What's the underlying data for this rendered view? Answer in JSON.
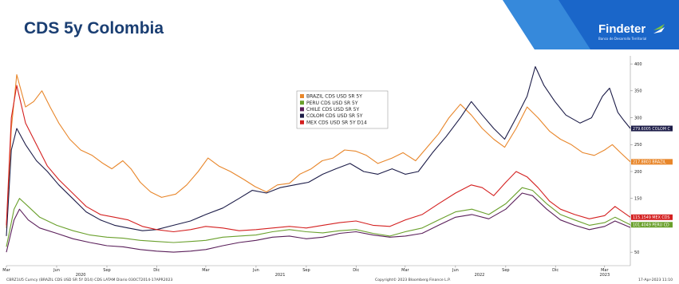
{
  "slide": {
    "title": "CDS 5y Colombia",
    "logo": {
      "name": "Findeter",
      "tagline": "Banco de Desarrollo Territorial",
      "colors": {
        "banner": "#1a66c9",
        "banner_light": "#4aa0e8",
        "mark_green": "#7cc242",
        "title": "#1a3e72"
      }
    }
  },
  "chart_data": {
    "type": "line",
    "xlim": [
      "2020-03-01",
      "2023-04-17"
    ],
    "ylim": [
      25,
      415
    ],
    "y_ticks": [
      50,
      100,
      150,
      200,
      250,
      300,
      350,
      400
    ],
    "grid": false,
    "legend_position": "top-center",
    "x_month_ticks": [
      {
        "date": "2020-03-01",
        "label": "Mar"
      },
      {
        "date": "2020-06-01",
        "label": "Jun"
      },
      {
        "date": "2020-09-01",
        "label": "Sep"
      },
      {
        "date": "2020-12-01",
        "label": "Dic"
      },
      {
        "date": "2021-03-01",
        "label": "Mar"
      },
      {
        "date": "2021-06-01",
        "label": "Jun"
      },
      {
        "date": "2021-09-01",
        "label": "Sep"
      },
      {
        "date": "2021-12-01",
        "label": "Dic"
      },
      {
        "date": "2022-03-01",
        "label": "Mar"
      },
      {
        "date": "2022-06-01",
        "label": "Jun"
      },
      {
        "date": "2022-09-01",
        "label": "Sep"
      },
      {
        "date": "2022-12-01",
        "label": "Dic"
      },
      {
        "date": "2023-03-01",
        "label": "Mar"
      }
    ],
    "x_year_labels": [
      {
        "date": "2020-07-15",
        "label": "2020"
      },
      {
        "date": "2021-07-15",
        "label": "2021"
      },
      {
        "date": "2022-07-15",
        "label": "2022"
      },
      {
        "date": "2023-03-01",
        "label": "2023"
      }
    ],
    "series": [
      {
        "name": "BRAZIL CDS USD SR 5Y",
        "color": "#e8862a",
        "last_label": "217.8803 BRAZIL",
        "points": [
          [
            "2020-03-01",
            95
          ],
          [
            "2020-03-10",
            280
          ],
          [
            "2020-03-20",
            380
          ],
          [
            "2020-04-05",
            320
          ],
          [
            "2020-04-20",
            330
          ],
          [
            "2020-05-05",
            350
          ],
          [
            "2020-05-20",
            320
          ],
          [
            "2020-06-05",
            290
          ],
          [
            "2020-06-25",
            260
          ],
          [
            "2020-07-15",
            240
          ],
          [
            "2020-08-05",
            230
          ],
          [
            "2020-08-25",
            215
          ],
          [
            "2020-09-10",
            205
          ],
          [
            "2020-09-30",
            220
          ],
          [
            "2020-10-15",
            205
          ],
          [
            "2020-11-01",
            180
          ],
          [
            "2020-11-20",
            162
          ],
          [
            "2020-12-10",
            152
          ],
          [
            "2021-01-05",
            158
          ],
          [
            "2021-01-25",
            175
          ],
          [
            "2021-02-15",
            200
          ],
          [
            "2021-03-05",
            225
          ],
          [
            "2021-03-25",
            210
          ],
          [
            "2021-04-15",
            200
          ],
          [
            "2021-05-10",
            185
          ],
          [
            "2021-05-30",
            172
          ],
          [
            "2021-06-20",
            162
          ],
          [
            "2021-07-10",
            175
          ],
          [
            "2021-08-01",
            178
          ],
          [
            "2021-08-20",
            195
          ],
          [
            "2021-09-10",
            205
          ],
          [
            "2021-09-30",
            220
          ],
          [
            "2021-10-20",
            225
          ],
          [
            "2021-11-10",
            240
          ],
          [
            "2021-11-30",
            238
          ],
          [
            "2021-12-20",
            230
          ],
          [
            "2022-01-10",
            215
          ],
          [
            "2022-02-05",
            225
          ],
          [
            "2022-02-25",
            235
          ],
          [
            "2022-03-20",
            220
          ],
          [
            "2022-04-10",
            245
          ],
          [
            "2022-05-01",
            270
          ],
          [
            "2022-05-20",
            300
          ],
          [
            "2022-06-10",
            325
          ],
          [
            "2022-06-30",
            305
          ],
          [
            "2022-07-20",
            280
          ],
          [
            "2022-08-10",
            260
          ],
          [
            "2022-08-30",
            245
          ],
          [
            "2022-09-20",
            280
          ],
          [
            "2022-10-10",
            320
          ],
          [
            "2022-10-30",
            300
          ],
          [
            "2022-11-20",
            275
          ],
          [
            "2022-12-10",
            260
          ],
          [
            "2022-12-30",
            250
          ],
          [
            "2023-01-20",
            235
          ],
          [
            "2023-02-10",
            230
          ],
          [
            "2023-03-01",
            240
          ],
          [
            "2023-03-15",
            250
          ],
          [
            "2023-03-30",
            235
          ],
          [
            "2023-04-17",
            218
          ]
        ]
      },
      {
        "name": "PERU CDS USD SR 5Y",
        "color": "#6aa02c",
        "last_label": "101.4049 PERU CD",
        "points": [
          [
            "2020-03-01",
            60
          ],
          [
            "2020-03-15",
            130
          ],
          [
            "2020-03-25",
            150
          ],
          [
            "2020-04-10",
            135
          ],
          [
            "2020-05-01",
            115
          ],
          [
            "2020-06-01",
            100
          ],
          [
            "2020-07-01",
            90
          ],
          [
            "2020-08-01",
            82
          ],
          [
            "2020-09-01",
            78
          ],
          [
            "2020-10-01",
            76
          ],
          [
            "2020-11-01",
            72
          ],
          [
            "2020-12-01",
            70
          ],
          [
            "2021-01-01",
            68
          ],
          [
            "2021-02-01",
            70
          ],
          [
            "2021-03-01",
            72
          ],
          [
            "2021-04-01",
            78
          ],
          [
            "2021-05-01",
            80
          ],
          [
            "2021-06-01",
            82
          ],
          [
            "2021-07-01",
            88
          ],
          [
            "2021-08-01",
            92
          ],
          [
            "2021-09-01",
            88
          ],
          [
            "2021-10-01",
            86
          ],
          [
            "2021-11-01",
            90
          ],
          [
            "2021-12-01",
            92
          ],
          [
            "2022-01-01",
            85
          ],
          [
            "2022-02-01",
            80
          ],
          [
            "2022-03-01",
            88
          ],
          [
            "2022-04-01",
            95
          ],
          [
            "2022-05-01",
            110
          ],
          [
            "2022-06-01",
            125
          ],
          [
            "2022-07-01",
            130
          ],
          [
            "2022-08-01",
            120
          ],
          [
            "2022-09-01",
            140
          ],
          [
            "2022-10-01",
            170
          ],
          [
            "2022-10-20",
            165
          ],
          [
            "2022-11-15",
            140
          ],
          [
            "2022-12-10",
            120
          ],
          [
            "2023-01-05",
            110
          ],
          [
            "2023-02-01",
            100
          ],
          [
            "2023-03-01",
            105
          ],
          [
            "2023-03-20",
            115
          ],
          [
            "2023-04-17",
            101
          ]
        ]
      },
      {
        "name": "CHILE CDS USD SR 5Y",
        "color": "#5a1f5a",
        "last_label": "",
        "points": [
          [
            "2020-03-01",
            50
          ],
          [
            "2020-03-15",
            110
          ],
          [
            "2020-03-25",
            130
          ],
          [
            "2020-04-10",
            110
          ],
          [
            "2020-05-01",
            95
          ],
          [
            "2020-06-01",
            85
          ],
          [
            "2020-07-01",
            75
          ],
          [
            "2020-08-01",
            68
          ],
          [
            "2020-09-01",
            62
          ],
          [
            "2020-10-01",
            60
          ],
          [
            "2020-11-01",
            55
          ],
          [
            "2020-12-01",
            52
          ],
          [
            "2021-01-01",
            50
          ],
          [
            "2021-02-01",
            52
          ],
          [
            "2021-03-01",
            55
          ],
          [
            "2021-04-01",
            62
          ],
          [
            "2021-05-01",
            68
          ],
          [
            "2021-06-01",
            72
          ],
          [
            "2021-07-01",
            78
          ],
          [
            "2021-08-01",
            80
          ],
          [
            "2021-09-01",
            75
          ],
          [
            "2021-10-01",
            78
          ],
          [
            "2021-11-01",
            85
          ],
          [
            "2021-12-01",
            88
          ],
          [
            "2022-01-01",
            82
          ],
          [
            "2022-02-01",
            78
          ],
          [
            "2022-03-01",
            80
          ],
          [
            "2022-04-01",
            85
          ],
          [
            "2022-05-01",
            100
          ],
          [
            "2022-06-01",
            115
          ],
          [
            "2022-07-01",
            120
          ],
          [
            "2022-08-01",
            112
          ],
          [
            "2022-09-01",
            130
          ],
          [
            "2022-10-01",
            160
          ],
          [
            "2022-10-20",
            155
          ],
          [
            "2022-11-15",
            130
          ],
          [
            "2022-12-10",
            110
          ],
          [
            "2023-01-05",
            100
          ],
          [
            "2023-02-01",
            92
          ],
          [
            "2023-03-01",
            98
          ],
          [
            "2023-03-20",
            108
          ],
          [
            "2023-04-17",
            96
          ]
        ]
      },
      {
        "name": "COLOM CDS USD SR 5Y",
        "color": "#1c1c48",
        "last_label": "279.6005 COLOM C",
        "points": [
          [
            "2020-03-01",
            80
          ],
          [
            "2020-03-10",
            240
          ],
          [
            "2020-03-20",
            280
          ],
          [
            "2020-04-05",
            250
          ],
          [
            "2020-04-25",
            220
          ],
          [
            "2020-05-15",
            200
          ],
          [
            "2020-06-05",
            175
          ],
          [
            "2020-06-30",
            150
          ],
          [
            "2020-07-25",
            125
          ],
          [
            "2020-08-20",
            110
          ],
          [
            "2020-09-15",
            100
          ],
          [
            "2020-10-10",
            95
          ],
          [
            "2020-11-05",
            90
          ],
          [
            "2020-12-01",
            92
          ],
          [
            "2021-01-01",
            100
          ],
          [
            "2021-02-01",
            108
          ],
          [
            "2021-03-01",
            120
          ],
          [
            "2021-04-01",
            132
          ],
          [
            "2021-05-01",
            150
          ],
          [
            "2021-05-25",
            165
          ],
          [
            "2021-06-20",
            160
          ],
          [
            "2021-07-15",
            170
          ],
          [
            "2021-08-10",
            175
          ],
          [
            "2021-09-05",
            180
          ],
          [
            "2021-10-01",
            195
          ],
          [
            "2021-10-25",
            205
          ],
          [
            "2021-11-20",
            215
          ],
          [
            "2021-12-15",
            200
          ],
          [
            "2022-01-10",
            195
          ],
          [
            "2022-02-05",
            205
          ],
          [
            "2022-03-01",
            195
          ],
          [
            "2022-03-25",
            200
          ],
          [
            "2022-04-20",
            235
          ],
          [
            "2022-05-15",
            265
          ],
          [
            "2022-06-10",
            300
          ],
          [
            "2022-06-30",
            330
          ],
          [
            "2022-07-20",
            305
          ],
          [
            "2022-08-10",
            280
          ],
          [
            "2022-08-30",
            260
          ],
          [
            "2022-09-20",
            300
          ],
          [
            "2022-10-10",
            340
          ],
          [
            "2022-10-25",
            395
          ],
          [
            "2022-11-10",
            360
          ],
          [
            "2022-11-30",
            330
          ],
          [
            "2022-12-20",
            305
          ],
          [
            "2023-01-15",
            290
          ],
          [
            "2023-02-05",
            300
          ],
          [
            "2023-02-25",
            340
          ],
          [
            "2023-03-10",
            355
          ],
          [
            "2023-03-25",
            310
          ],
          [
            "2023-04-05",
            295
          ],
          [
            "2023-04-17",
            280
          ]
        ]
      },
      {
        "name": "MEX CDS USD SR 5Y D14",
        "color": "#d42020",
        "last_label": "115.1549 MEX CDS",
        "points": [
          [
            "2020-03-01",
            100
          ],
          [
            "2020-03-10",
            300
          ],
          [
            "2020-03-20",
            360
          ],
          [
            "2020-04-05",
            290
          ],
          [
            "2020-04-25",
            250
          ],
          [
            "2020-05-15",
            210
          ],
          [
            "2020-06-05",
            185
          ],
          [
            "2020-06-30",
            160
          ],
          [
            "2020-07-25",
            135
          ],
          [
            "2020-08-20",
            120
          ],
          [
            "2020-09-15",
            115
          ],
          [
            "2020-10-10",
            110
          ],
          [
            "2020-11-05",
            98
          ],
          [
            "2020-12-01",
            92
          ],
          [
            "2021-01-01",
            88
          ],
          [
            "2021-02-01",
            92
          ],
          [
            "2021-03-01",
            98
          ],
          [
            "2021-04-01",
            95
          ],
          [
            "2021-05-01",
            90
          ],
          [
            "2021-06-01",
            92
          ],
          [
            "2021-07-01",
            95
          ],
          [
            "2021-08-01",
            98
          ],
          [
            "2021-09-01",
            95
          ],
          [
            "2021-10-01",
            100
          ],
          [
            "2021-11-01",
            105
          ],
          [
            "2021-12-01",
            108
          ],
          [
            "2022-01-01",
            100
          ],
          [
            "2022-02-01",
            98
          ],
          [
            "2022-03-01",
            110
          ],
          [
            "2022-04-01",
            120
          ],
          [
            "2022-05-01",
            140
          ],
          [
            "2022-06-01",
            160
          ],
          [
            "2022-06-30",
            175
          ],
          [
            "2022-07-20",
            170
          ],
          [
            "2022-08-10",
            155
          ],
          [
            "2022-09-01",
            180
          ],
          [
            "2022-09-20",
            200
          ],
          [
            "2022-10-10",
            190
          ],
          [
            "2022-10-30",
            170
          ],
          [
            "2022-11-20",
            145
          ],
          [
            "2022-12-10",
            130
          ],
          [
            "2023-01-05",
            120
          ],
          [
            "2023-02-01",
            112
          ],
          [
            "2023-03-01",
            118
          ],
          [
            "2023-03-20",
            135
          ],
          [
            "2023-04-17",
            115
          ]
        ]
      }
    ],
    "footer_left": "CBRZ1U5 Curncy (BRAZIL CDS USD SR 5Y D14) CDS LATAM  Diario 03OCT2014-17APR2023",
    "footer_center": "Copyright© 2023 Bloomberg Finance L.P.",
    "footer_right": "17-Apr-2023 11:10"
  }
}
